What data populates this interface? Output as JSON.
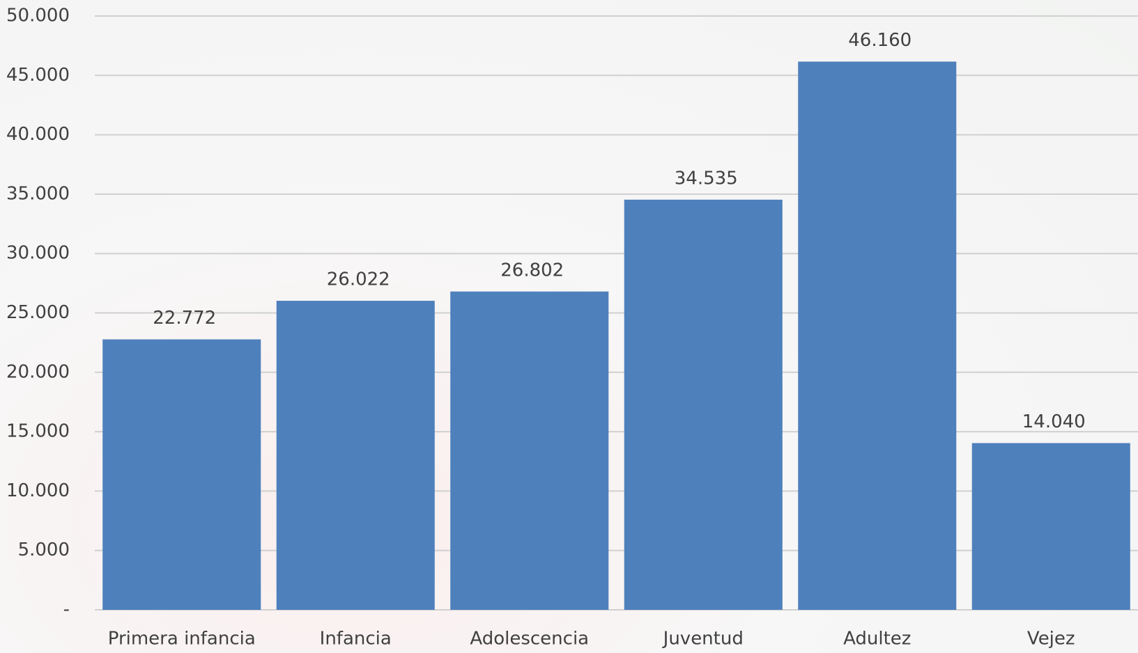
{
  "chart_data": {
    "type": "bar",
    "categories": [
      "Primera infancia",
      "Infancia",
      "Adolescencia",
      "Juventud",
      "Adultez",
      "Vejez"
    ],
    "values": [
      22772,
      26022,
      26802,
      34535,
      46160,
      14040
    ],
    "value_labels": [
      "22.772",
      "26.022",
      "26.802",
      "34.535",
      "46.160",
      "14.040"
    ],
    "color": "#4e80bc",
    "ylim": [
      0,
      50000
    ],
    "yticks": [
      {
        "value": 0,
        "label": "-"
      },
      {
        "value": 5000,
        "label": "5.000"
      },
      {
        "value": 10000,
        "label": "10.000"
      },
      {
        "value": 15000,
        "label": "15.000"
      },
      {
        "value": 20000,
        "label": "20.000"
      },
      {
        "value": 25000,
        "label": "25.000"
      },
      {
        "value": 30000,
        "label": "30.000"
      },
      {
        "value": 35000,
        "label": "35.000"
      },
      {
        "value": 40000,
        "label": "40.000"
      },
      {
        "value": 45000,
        "label": "45.000"
      },
      {
        "value": 50000,
        "label": "50.000"
      }
    ],
    "grid": true
  }
}
